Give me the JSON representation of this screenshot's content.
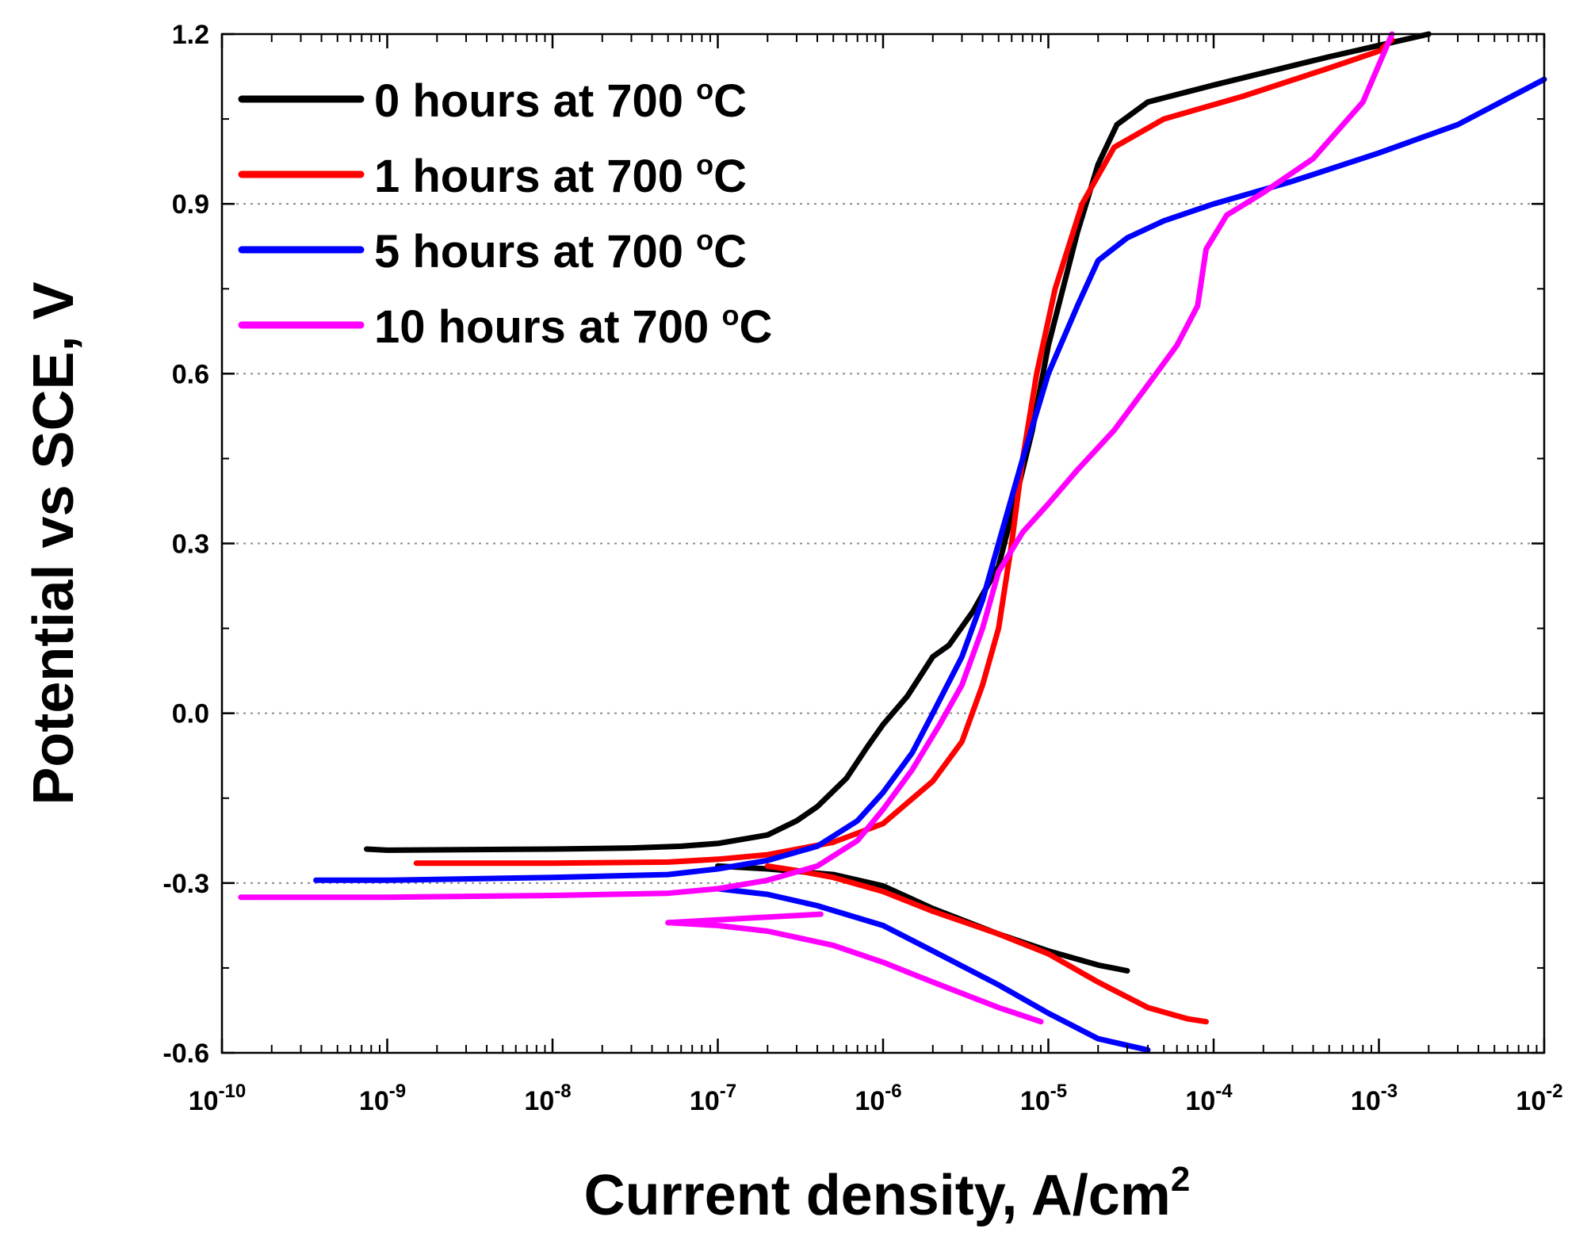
{
  "chart_data": {
    "type": "line",
    "xscale": "log",
    "xlabel": "Current density, A/cm",
    "xlabel_sup": "2",
    "ylabel": "Potential vs SCE, V",
    "xlim": [
      1e-10,
      0.01
    ],
    "ylim": [
      -0.6,
      1.2
    ],
    "grid": "horizontal dotted",
    "legend_position": "top-left",
    "y_ticks": [
      {
        "value": 1.2,
        "label": "1.2"
      },
      {
        "value": 0.9,
        "label": "0.9"
      },
      {
        "value": 0.6,
        "label": "0.6"
      },
      {
        "value": 0.3,
        "label": "0.3"
      },
      {
        "value": 0.0,
        "label": "0.0"
      },
      {
        "value": -0.3,
        "label": "-0.3"
      },
      {
        "value": -0.6,
        "label": "-0.6"
      }
    ],
    "x_ticks": [
      {
        "exp": -10,
        "base": "10",
        "sup": "-10"
      },
      {
        "exp": -9,
        "base": "10",
        "sup": "-9"
      },
      {
        "exp": -8,
        "base": "10",
        "sup": "-8"
      },
      {
        "exp": -7,
        "base": "10",
        "sup": "-7"
      },
      {
        "exp": -6,
        "base": "10",
        "sup": "-6"
      },
      {
        "exp": -5,
        "base": "10",
        "sup": "-5"
      },
      {
        "exp": -4,
        "base": "10",
        "sup": "-4"
      },
      {
        "exp": -3,
        "base": "10",
        "sup": "-3"
      },
      {
        "exp": -2,
        "base": "10",
        "sup": "-2"
      }
    ],
    "series": [
      {
        "name": "0 hours at 700 °C",
        "legend_text": "0 hours at 700",
        "color": "#000000",
        "cathodic": [
          [
            1e-07,
            -0.27
          ],
          [
            2e-07,
            -0.275
          ],
          [
            5e-07,
            -0.285
          ],
          [
            1e-06,
            -0.305
          ],
          [
            2e-06,
            -0.345
          ],
          [
            5e-06,
            -0.39
          ],
          [
            1e-05,
            -0.42
          ],
          [
            2e-05,
            -0.445
          ],
          [
            3e-05,
            -0.455
          ]
        ],
        "anodic": [
          [
            7.5e-10,
            -0.24
          ],
          [
            1e-09,
            -0.242
          ],
          [
            1e-08,
            -0.24
          ],
          [
            3e-08,
            -0.238
          ],
          [
            6e-08,
            -0.235
          ],
          [
            1e-07,
            -0.23
          ],
          [
            2e-07,
            -0.215
          ],
          [
            3e-07,
            -0.19
          ],
          [
            4e-07,
            -0.165
          ],
          [
            6e-07,
            -0.115
          ],
          [
            8e-07,
            -0.06
          ],
          [
            1e-06,
            -0.02
          ],
          [
            1.4e-06,
            0.03
          ],
          [
            2e-06,
            0.1
          ],
          [
            2.5e-06,
            0.12
          ],
          [
            3.5e-06,
            0.18
          ],
          [
            5e-06,
            0.26
          ],
          [
            6e-06,
            0.35
          ],
          [
            8e-06,
            0.5
          ],
          [
            1e-05,
            0.65
          ],
          [
            1.5e-05,
            0.85
          ],
          [
            2e-05,
            0.97
          ],
          [
            2.6e-05,
            1.04
          ],
          [
            4e-05,
            1.08
          ],
          [
            0.0001,
            1.11
          ],
          [
            0.0005,
            1.16
          ],
          [
            0.001,
            1.18
          ],
          [
            0.002,
            1.2
          ]
        ]
      },
      {
        "name": "1 hours at 700 °C",
        "legend_text": "1 hours at 700",
        "color": "#ff0000",
        "cathodic": [
          [
            2e-07,
            -0.27
          ],
          [
            3e-07,
            -0.278
          ],
          [
            5e-07,
            -0.29
          ],
          [
            1e-06,
            -0.315
          ],
          [
            2e-06,
            -0.35
          ],
          [
            5e-06,
            -0.39
          ],
          [
            1e-05,
            -0.425
          ],
          [
            2e-05,
            -0.475
          ],
          [
            4e-05,
            -0.52
          ],
          [
            7e-05,
            -0.54
          ],
          [
            9e-05,
            -0.545
          ]
        ],
        "anodic": [
          [
            1.5e-09,
            -0.265
          ],
          [
            1e-08,
            -0.265
          ],
          [
            5e-08,
            -0.263
          ],
          [
            1e-07,
            -0.258
          ],
          [
            2e-07,
            -0.25
          ],
          [
            5e-07,
            -0.228
          ],
          [
            1e-06,
            -0.195
          ],
          [
            2e-06,
            -0.12
          ],
          [
            3e-06,
            -0.05
          ],
          [
            4e-06,
            0.05
          ],
          [
            5e-06,
            0.15
          ],
          [
            6e-06,
            0.3
          ],
          [
            7e-06,
            0.45
          ],
          [
            8.5e-06,
            0.6
          ],
          [
            1.1e-05,
            0.75
          ],
          [
            1.6e-05,
            0.9
          ],
          [
            2.5e-05,
            1.0
          ],
          [
            5e-05,
            1.05
          ],
          [
            0.00015,
            1.09
          ],
          [
            0.0005,
            1.14
          ],
          [
            0.001,
            1.17
          ],
          [
            0.0012,
            1.19
          ]
        ]
      },
      {
        "name": "5 hours at 700 °C",
        "legend_text": "5 hours at 700",
        "color": "#0000ff",
        "cathodic": [
          [
            1e-07,
            -0.31
          ],
          [
            2e-07,
            -0.32
          ],
          [
            4e-07,
            -0.34
          ],
          [
            1e-06,
            -0.375
          ],
          [
            2e-06,
            -0.42
          ],
          [
            5e-06,
            -0.48
          ],
          [
            1e-05,
            -0.53
          ],
          [
            2e-05,
            -0.575
          ],
          [
            4e-05,
            -0.595
          ]
        ],
        "anodic": [
          [
            3.7e-10,
            -0.295
          ],
          [
            1e-09,
            -0.295
          ],
          [
            1e-08,
            -0.29
          ],
          [
            5e-08,
            -0.285
          ],
          [
            1e-07,
            -0.275
          ],
          [
            2e-07,
            -0.26
          ],
          [
            4e-07,
            -0.235
          ],
          [
            7e-07,
            -0.19
          ],
          [
            1e-06,
            -0.14
          ],
          [
            1.5e-06,
            -0.07
          ],
          [
            2e-06,
            0.0
          ],
          [
            3e-06,
            0.1
          ],
          [
            4e-06,
            0.2
          ],
          [
            5e-06,
            0.3
          ],
          [
            7e-06,
            0.45
          ],
          [
            1e-05,
            0.6
          ],
          [
            1.5e-05,
            0.72
          ],
          [
            2e-05,
            0.8
          ],
          [
            3e-05,
            0.84
          ],
          [
            5e-05,
            0.87
          ],
          [
            0.0001,
            0.9
          ],
          [
            0.0003,
            0.94
          ],
          [
            0.001,
            0.99
          ],
          [
            0.003,
            1.04
          ],
          [
            0.01,
            1.12
          ]
        ]
      },
      {
        "name": "10 hours at 700 °C",
        "legend_text": "10 hours at 700",
        "color": "#ff00ff",
        "cathodic": [
          [
            5e-08,
            -0.37
          ],
          [
            1e-07,
            -0.375
          ],
          [
            2e-07,
            -0.385
          ],
          [
            5e-07,
            -0.41
          ],
          [
            1e-06,
            -0.44
          ],
          [
            2e-06,
            -0.475
          ],
          [
            5e-06,
            -0.52
          ],
          [
            9e-06,
            -0.545
          ]
        ],
        "cathodic_return": [
          [
            5e-08,
            -0.37
          ],
          [
            1e-07,
            -0.365
          ],
          [
            2e-07,
            -0.36
          ],
          [
            4.2e-07,
            -0.355
          ]
        ],
        "anodic": [
          [
            1.3e-10,
            -0.325
          ],
          [
            1e-09,
            -0.325
          ],
          [
            1e-08,
            -0.322
          ],
          [
            5e-08,
            -0.318
          ],
          [
            1e-07,
            -0.31
          ],
          [
            2e-07,
            -0.295
          ],
          [
            4e-07,
            -0.27
          ],
          [
            7e-07,
            -0.225
          ],
          [
            1e-06,
            -0.17
          ],
          [
            1.5e-06,
            -0.1
          ],
          [
            2.2e-06,
            -0.02
          ],
          [
            3e-06,
            0.05
          ],
          [
            4e-06,
            0.15
          ],
          [
            5e-06,
            0.25
          ],
          [
            7e-06,
            0.32
          ],
          [
            1e-05,
            0.37
          ],
          [
            1.5e-05,
            0.43
          ],
          [
            2.5e-05,
            0.5
          ],
          [
            4e-05,
            0.58
          ],
          [
            6e-05,
            0.65
          ],
          [
            8e-05,
            0.72
          ],
          [
            9e-05,
            0.82
          ],
          [
            0.00012,
            0.88
          ],
          [
            0.0002,
            0.92
          ],
          [
            0.0004,
            0.98
          ],
          [
            0.0008,
            1.08
          ],
          [
            0.0012,
            1.2
          ]
        ]
      }
    ]
  }
}
